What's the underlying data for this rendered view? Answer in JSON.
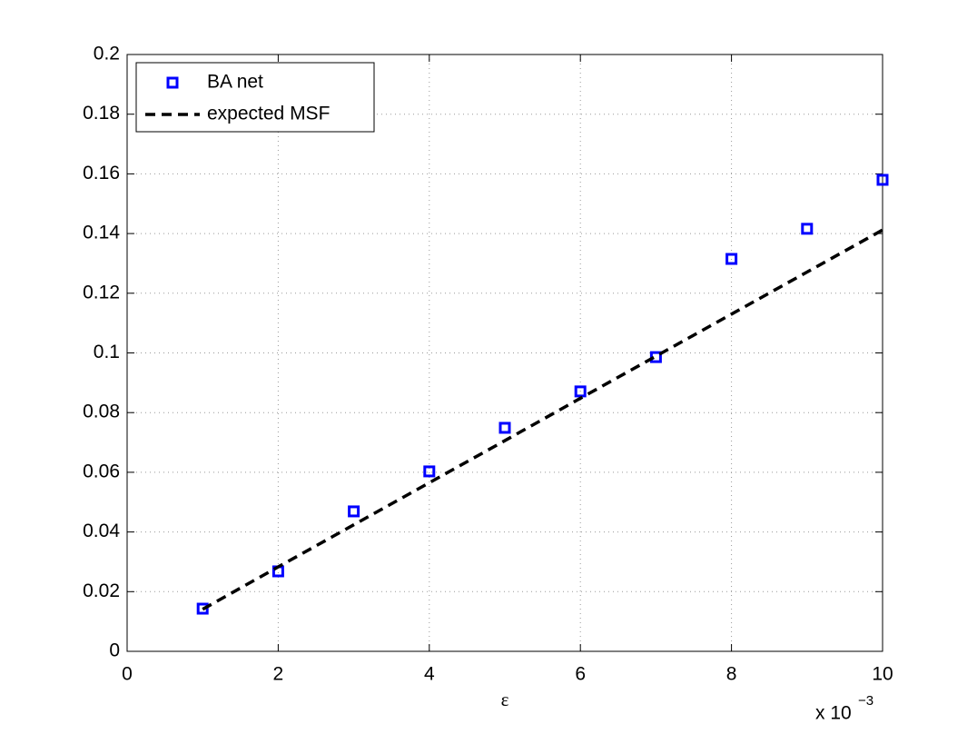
{
  "chart_data": {
    "type": "scatter",
    "x_label": "ε",
    "x_multiplier": {
      "base": "x 10",
      "exponent": "−3"
    },
    "x": [
      1,
      2,
      3,
      4,
      5,
      6,
      7,
      8,
      9,
      10
    ],
    "series": [
      {
        "name": "BA net",
        "color": "#0000ff",
        "marker": "square",
        "values": [
          0.0143,
          0.0268,
          0.0469,
          0.0603,
          0.0749,
          0.0871,
          0.0986,
          0.1315,
          0.1416,
          0.158
        ]
      },
      {
        "name": "expected MSF",
        "color": "#000000",
        "line": "dashed",
        "values": [
          0.0141,
          0.0283,
          0.0424,
          0.0565,
          0.0706,
          0.0848,
          0.0989,
          0.113,
          0.1271,
          0.1412
        ]
      }
    ],
    "xlim": [
      0,
      10
    ],
    "xticks": [
      0,
      2,
      4,
      6,
      8,
      10
    ],
    "ylim": [
      0,
      0.2
    ],
    "yticks": [
      0,
      0.02,
      0.04,
      0.06,
      0.08,
      0.1,
      0.12,
      0.14,
      0.16,
      0.18,
      0.2
    ],
    "grid": true,
    "legend": "upper left"
  }
}
